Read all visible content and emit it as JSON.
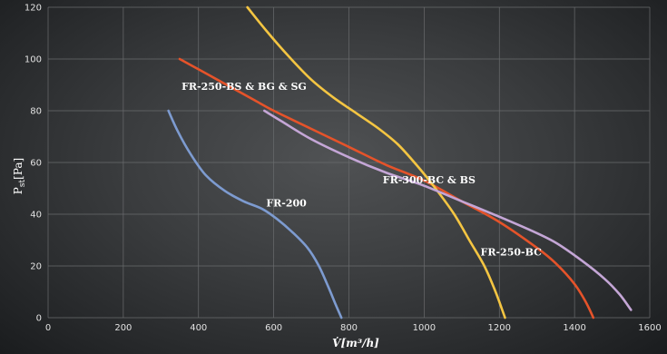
{
  "chart_data": {
    "type": "line",
    "xlim": [
      0,
      1600
    ],
    "ylim": [
      0,
      120
    ],
    "x_ticks": [
      0,
      200,
      400,
      600,
      800,
      1000,
      1200,
      1400,
      1600
    ],
    "y_ticks": [
      0,
      20,
      40,
      60,
      80,
      100,
      120
    ],
    "grid": true,
    "xlabel": {
      "main": "V̇",
      "unit": "[m³/h]"
    },
    "ylabel": {
      "main": "P",
      "sub": "st",
      "unit": "[Pa]"
    },
    "series": [
      {
        "name": "FR-200",
        "color": "#7d9bd0",
        "points": [
          [
            320,
            80
          ],
          [
            345,
            72
          ],
          [
            380,
            63
          ],
          [
            420,
            55
          ],
          [
            470,
            49
          ],
          [
            520,
            45
          ],
          [
            570,
            42
          ],
          [
            610,
            38
          ],
          [
            650,
            33
          ],
          [
            690,
            27
          ],
          [
            720,
            20
          ],
          [
            745,
            12
          ],
          [
            765,
            5
          ],
          [
            780,
            0
          ]
        ]
      },
      {
        "name": "FR-250-BS & BG & SG",
        "color": "#e5532a",
        "points": [
          [
            350,
            100
          ],
          [
            400,
            96
          ],
          [
            450,
            92
          ],
          [
            500,
            88
          ],
          [
            550,
            84
          ],
          [
            600,
            80
          ],
          [
            700,
            73
          ],
          [
            800,
            66
          ],
          [
            900,
            59
          ],
          [
            1000,
            53
          ],
          [
            1100,
            45
          ],
          [
            1200,
            37
          ],
          [
            1300,
            27
          ],
          [
            1350,
            21
          ],
          [
            1400,
            13
          ],
          [
            1430,
            6
          ],
          [
            1450,
            0
          ]
        ]
      },
      {
        "name": "FR-250-BC",
        "color": "#f4c542",
        "points": [
          [
            530,
            120
          ],
          [
            580,
            111
          ],
          [
            640,
            101
          ],
          [
            700,
            92
          ],
          [
            760,
            85
          ],
          [
            820,
            79
          ],
          [
            880,
            73
          ],
          [
            930,
            67
          ],
          [
            980,
            59
          ],
          [
            1030,
            50
          ],
          [
            1080,
            40
          ],
          [
            1120,
            30
          ],
          [
            1160,
            20
          ],
          [
            1190,
            10
          ],
          [
            1215,
            0
          ]
        ]
      },
      {
        "name": "FR-300-BC & BS",
        "color": "#c4a6d6",
        "points": [
          [
            575,
            80
          ],
          [
            620,
            76
          ],
          [
            700,
            69
          ],
          [
            800,
            62
          ],
          [
            900,
            56
          ],
          [
            1000,
            51
          ],
          [
            1100,
            45
          ],
          [
            1200,
            39
          ],
          [
            1280,
            34
          ],
          [
            1350,
            29
          ],
          [
            1420,
            22
          ],
          [
            1480,
            15
          ],
          [
            1520,
            9
          ],
          [
            1550,
            3
          ]
        ]
      }
    ],
    "labels": [
      {
        "series": "FR-250-BS & BG & SG",
        "x": 355,
        "y": 88
      },
      {
        "series": "FR-300-BC & BS",
        "x": 890,
        "y": 52
      },
      {
        "series": "FR-200",
        "x": 580,
        "y": 43
      },
      {
        "series": "FR-250-BC",
        "x": 1150,
        "y": 24
      }
    ]
  }
}
